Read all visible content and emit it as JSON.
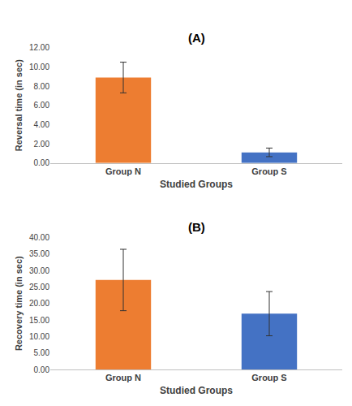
{
  "chart_data": [
    {
      "type": "bar",
      "title": "(A)",
      "x_label": "Studied Groups",
      "y_label": "Reversal time (in sec)",
      "categories": [
        "Group N",
        "Group S"
      ],
      "values": [
        8.9,
        1.1
      ],
      "error": [
        1.6,
        0.45
      ],
      "colors": [
        "#ed7d31",
        "#4472c4"
      ],
      "ylim": [
        0,
        12
      ],
      "yticks": [
        {
          "value": 0,
          "label": "0.00"
        },
        {
          "value": 2,
          "label": "2.00"
        },
        {
          "value": 4,
          "label": "4.00"
        },
        {
          "value": 6,
          "label": "6.00"
        },
        {
          "value": 8,
          "label": "8.00"
        },
        {
          "value": 10,
          "label": "10.00"
        },
        {
          "value": 12,
          "label": "12.00"
        }
      ],
      "grid": false
    },
    {
      "type": "bar",
      "title": "(B)",
      "x_label": "Studied Groups",
      "y_label": "Recovery time (in sec)",
      "categories": [
        "Group N",
        "Group S"
      ],
      "values": [
        27.1,
        16.9
      ],
      "error": [
        9.3,
        6.7
      ],
      "colors": [
        "#ed7d31",
        "#4472c4"
      ],
      "ylim": [
        0,
        40
      ],
      "yticks": [
        {
          "value": 0,
          "label": "0.00"
        },
        {
          "value": 5,
          "label": "5.00"
        },
        {
          "value": 10,
          "label": "10.00"
        },
        {
          "value": 15,
          "label": "15.00"
        },
        {
          "value": 20,
          "label": "20.00"
        },
        {
          "value": 25,
          "label": "25.00"
        },
        {
          "value": 30,
          "label": "30.00"
        },
        {
          "value": 35,
          "label": "35.00"
        },
        {
          "value": 40,
          "label": "40.00"
        }
      ],
      "grid": false
    }
  ]
}
